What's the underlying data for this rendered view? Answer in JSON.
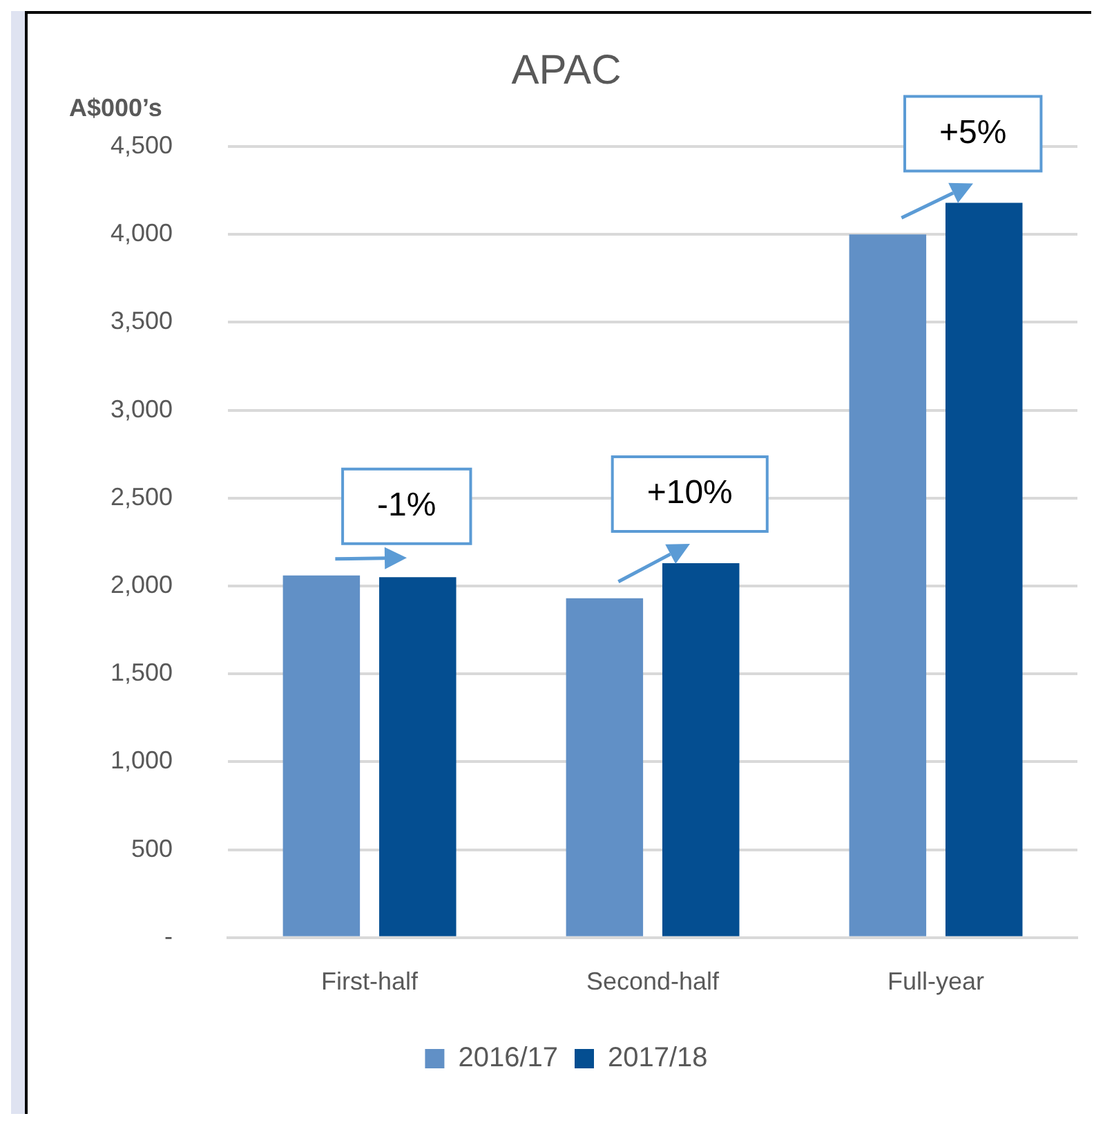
{
  "chart_data": {
    "type": "bar",
    "title": "APAC",
    "ylabel": "A$000’s",
    "categories": [
      "First-half",
      "Second-half",
      "Full-year"
    ],
    "series": [
      {
        "name": "2016/17",
        "color": "#6190c6",
        "values": [
          2060,
          1930,
          4000
        ]
      },
      {
        "name": "2017/18",
        "color": "#044e91",
        "values": [
          2050,
          2130,
          4180
        ]
      }
    ],
    "ylim": [
      0,
      4500
    ],
    "yticks": [
      {
        "value": 0,
        "label": "-"
      },
      {
        "value": 500,
        "label": "500"
      },
      {
        "value": 1000,
        "label": "1,000"
      },
      {
        "value": 1500,
        "label": "1,500"
      },
      {
        "value": 2000,
        "label": "2,000"
      },
      {
        "value": 2500,
        "label": "2,500"
      },
      {
        "value": 3000,
        "label": "3,000"
      },
      {
        "value": 3500,
        "label": "3,500"
      },
      {
        "value": 4000,
        "label": "4,000"
      },
      {
        "value": 4500,
        "label": "4,500"
      }
    ],
    "annotations": [
      "-1%",
      "+10%",
      "+5%"
    ],
    "grid": "y",
    "legend": "bottom"
  }
}
